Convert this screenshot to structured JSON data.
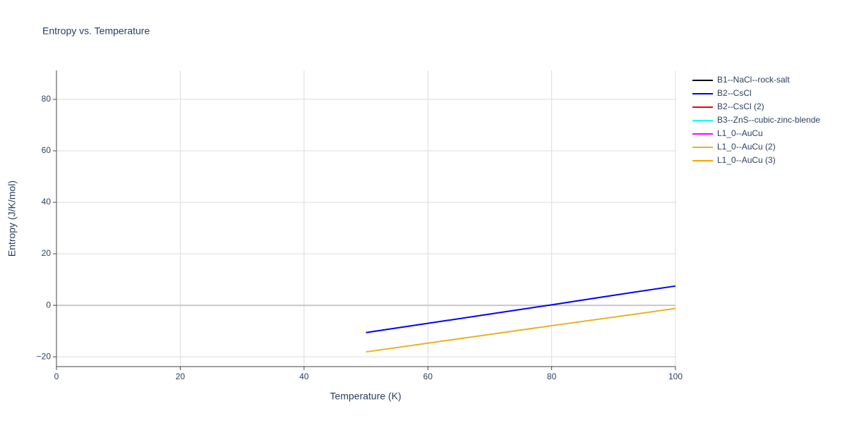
{
  "chart_data": {
    "type": "line",
    "title": "Entropy vs. Temperature",
    "x_label": "Temperature (K)",
    "y_label": "Entropy (J/K/mol)",
    "x": [
      50,
      60,
      70,
      80,
      90,
      100
    ],
    "series": [
      {
        "name": "B1--NaCl--rock-salt",
        "color": "#000000",
        "values": [
          null,
          null,
          null,
          null,
          null,
          null
        ]
      },
      {
        "name": "B2--CsCl",
        "color": "#0000ff",
        "values": [
          -10.6,
          -7.0,
          -3.4,
          0.2,
          3.9,
          7.5
        ]
      },
      {
        "name": "B2--CsCl (2)",
        "color": "#ff0000",
        "values": [
          null,
          null,
          null,
          null,
          null,
          null
        ]
      },
      {
        "name": "B3--ZnS--cubic-zinc-blende",
        "color": "#00ffff",
        "values": [
          null,
          null,
          null,
          null,
          null,
          null
        ]
      },
      {
        "name": "L1_0--AuCu",
        "color": "#ff00ff",
        "values": [
          null,
          null,
          null,
          null,
          null,
          null
        ]
      },
      {
        "name": "L1_0--AuCu (2)",
        "color": "#e6b422",
        "values": [
          -18.1,
          -14.7,
          -11.3,
          -7.9,
          -4.6,
          -1.2
        ]
      },
      {
        "name": "L1_0--AuCu (3)",
        "color": "#ffa500",
        "values": [
          null,
          null,
          null,
          null,
          null,
          null
        ]
      }
    ],
    "xlim": [
      0,
      100
    ],
    "xticks": [
      0,
      20,
      40,
      60,
      80,
      100
    ],
    "ylim": [
      -23.8,
      91.2
    ],
    "yticks": [
      {
        "value": -20,
        "label": "−20"
      },
      0,
      20,
      40,
      60,
      80
    ],
    "grid": true
  }
}
